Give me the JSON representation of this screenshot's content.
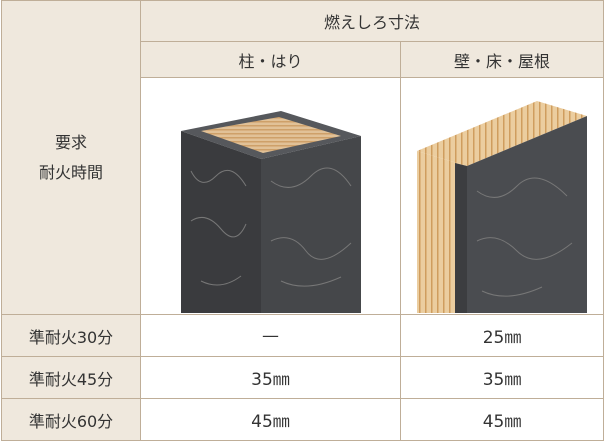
{
  "table": {
    "title": "燃えしろ寸法",
    "row_header": [
      "要求",
      "耐火時間"
    ],
    "columns": [
      "柱・はり",
      "壁・床・屋根"
    ],
    "rows": [
      {
        "label": "準耐火30分",
        "cells": [
          "—",
          "25㎜"
        ]
      },
      {
        "label": "準耐火45分",
        "cells": [
          "35㎜",
          "35㎜"
        ]
      },
      {
        "label": "準耐火60分",
        "cells": [
          "45㎜",
          "45㎜"
        ]
      }
    ]
  }
}
